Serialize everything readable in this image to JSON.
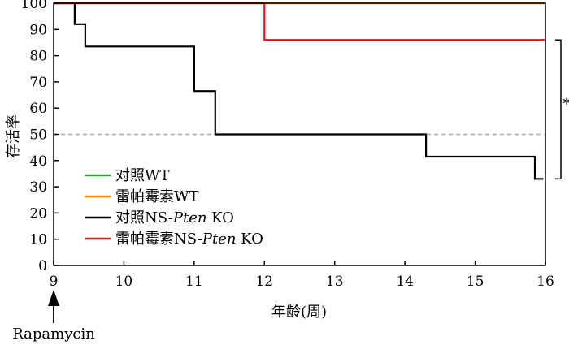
{
  "chart_data": {
    "type": "line",
    "xlabel": "年龄(周)",
    "ylabel": "存活率",
    "xlim": [
      9,
      16
    ],
    "ylim": [
      0,
      100
    ],
    "x_ticks": [
      9,
      10,
      11,
      12,
      13,
      14,
      15,
      16
    ],
    "y_ticks": [
      0,
      10,
      20,
      30,
      40,
      50,
      60,
      70,
      80,
      90,
      100
    ],
    "reference_line": {
      "y": 50,
      "style": "dashed",
      "color": "#aaaaaa"
    },
    "annotation": {
      "label": "Rapamycin",
      "x": 9,
      "marker": "up-arrow"
    },
    "significance": {
      "symbol": "*",
      "bracket_y": [
        33,
        86
      ]
    },
    "legend_position": "bottom-left",
    "series": [
      {
        "name": "对照WT",
        "color": "#2aa02a",
        "points": [
          [
            9,
            100
          ],
          [
            16,
            100
          ]
        ]
      },
      {
        "name": "雷帕霉素WT",
        "color": "#ff8c00",
        "points": [
          [
            9,
            100
          ],
          [
            16,
            100
          ]
        ]
      },
      {
        "name": "对照NS-Pten KO",
        "name_parts": [
          "对照NS-",
          "Pten",
          " KO"
        ],
        "color": "#000000",
        "points": [
          [
            9,
            100
          ],
          [
            9.3,
            100
          ],
          [
            9.3,
            92
          ],
          [
            9.45,
            92
          ],
          [
            9.45,
            83.5
          ],
          [
            11,
            83.5
          ],
          [
            11,
            66.5
          ],
          [
            11.3,
            66.5
          ],
          [
            11.3,
            50
          ],
          [
            14.3,
            50
          ],
          [
            14.3,
            41.5
          ],
          [
            15.85,
            41.5
          ],
          [
            15.85,
            33
          ],
          [
            15.97,
            33
          ]
        ]
      },
      {
        "name": "雷帕霉素NS-Pten KO",
        "name_parts": [
          "雷帕霉素NS-",
          "Pten",
          " KO"
        ],
        "color": "#e0141e",
        "points": [
          [
            9,
            100
          ],
          [
            12,
            100
          ],
          [
            12,
            86
          ],
          [
            16,
            86
          ]
        ]
      }
    ]
  }
}
